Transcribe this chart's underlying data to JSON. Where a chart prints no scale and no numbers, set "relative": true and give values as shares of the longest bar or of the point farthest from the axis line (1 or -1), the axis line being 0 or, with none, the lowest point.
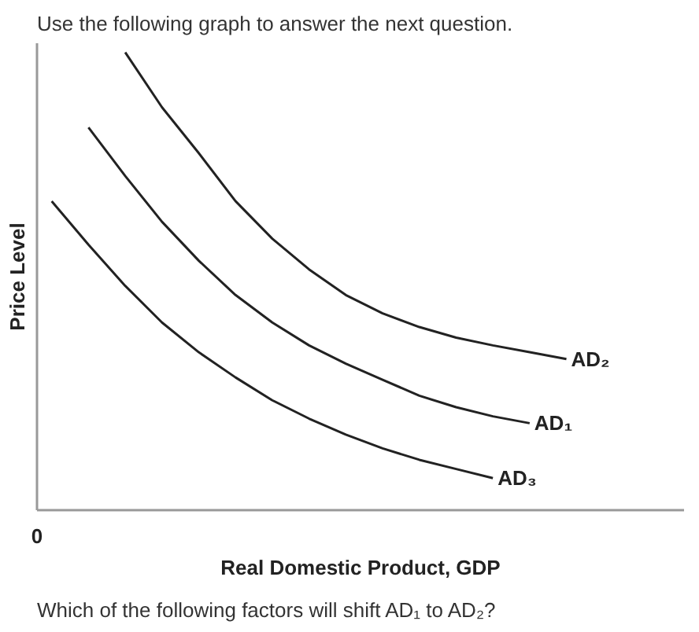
{
  "chart_data": {
    "type": "line",
    "relative": true,
    "title": "Use the following graph to answer the next question.",
    "xlabel": "Real Domestic Product, GDP",
    "ylabel": "Price Level",
    "legend": false,
    "marker": "none",
    "line_style": "solid",
    "annotations": [
      "0",
      "Which of the following factors will shift AD₁ to AD₂?"
    ],
    "categories": [
      null,
      null,
      null,
      null,
      null,
      null,
      null,
      null,
      null,
      null,
      null,
      null,
      null,
      null,
      null,
      null
    ],
    "series": [
      {
        "name": "AD₂",
        "color": "#222222",
        "values": [
          null,
          null,
          1.0,
          0.88,
          0.78,
          0.675,
          0.593,
          0.526,
          0.47,
          0.43,
          0.4,
          0.377,
          0.36,
          0.345,
          0.33,
          null
        ]
      },
      {
        "name": "AD₁",
        "color": "#222222",
        "values": [
          null,
          0.836,
          0.73,
          0.63,
          0.545,
          0.47,
          0.41,
          0.36,
          0.32,
          0.285,
          0.25,
          0.225,
          0.205,
          0.19,
          null,
          null
        ]
      },
      {
        "name": "AD₃",
        "color": "#222222",
        "values": [
          0.675,
          0.58,
          0.49,
          0.41,
          0.345,
          0.29,
          0.24,
          0.2,
          0.165,
          0.135,
          0.11,
          0.09,
          0.07,
          null,
          null,
          null
        ]
      }
    ]
  }
}
